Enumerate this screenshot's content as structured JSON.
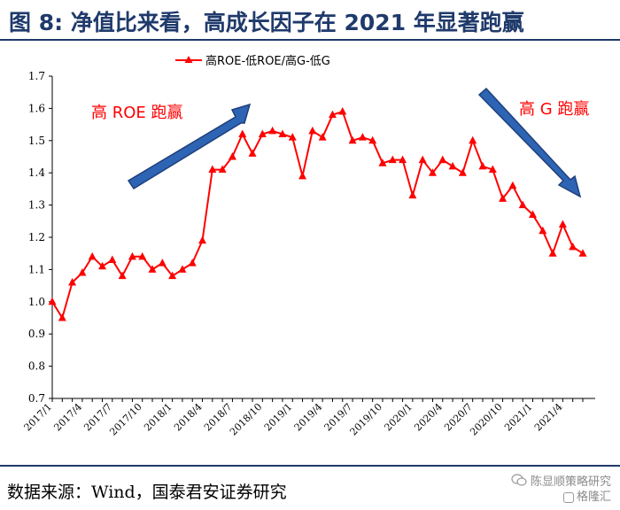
{
  "figure_title": "图 8:  净值比来看，高成长因子在 2021 年显著跑赢",
  "source_note": "数据来源：Wind，国泰君安证券研究",
  "watermark": {
    "line1": "陈显顺策略研究",
    "line2": "格隆汇"
  },
  "colors": {
    "series": "#ff0000",
    "arrow_fill": "#2e64b4",
    "arrow_stroke": "#1f3f7a",
    "title": "#1f3a6b",
    "annotation": "#ff0000"
  },
  "chart_data": {
    "type": "line",
    "title": "",
    "xlabel": "",
    "ylabel": "",
    "ylim": [
      0.7,
      1.7
    ],
    "yticks": [
      "0.7",
      "0.8",
      "0.9",
      "1.0",
      "1.1",
      "1.2",
      "1.3",
      "1.4",
      "1.5",
      "1.6",
      "1.7"
    ],
    "grid": false,
    "legend": "top-left",
    "x_tick_labels": [
      "2017/1",
      "2017/4",
      "2017/7",
      "2017/10",
      "2018/1",
      "2018/4",
      "2018/7",
      "2018/10",
      "2019/1",
      "2019/4",
      "2019/7",
      "2019/10",
      "2020/1",
      "2020/4",
      "2020/7",
      "2020/10",
      "2021/1",
      "2021/4"
    ],
    "x": [
      "2017/1",
      "2017/2",
      "2017/3",
      "2017/4",
      "2017/5",
      "2017/6",
      "2017/7",
      "2017/8",
      "2017/9",
      "2017/10",
      "2017/11",
      "2017/12",
      "2018/1",
      "2018/2",
      "2018/3",
      "2018/4",
      "2018/5",
      "2018/6",
      "2018/7",
      "2018/8",
      "2018/9",
      "2018/10",
      "2018/11",
      "2018/12",
      "2019/1",
      "2019/2",
      "2019/3",
      "2019/4",
      "2019/5",
      "2019/6",
      "2019/7",
      "2019/8",
      "2019/9",
      "2019/10",
      "2019/11",
      "2019/12",
      "2020/1",
      "2020/2",
      "2020/3",
      "2020/4",
      "2020/5",
      "2020/6",
      "2020/7",
      "2020/8",
      "2020/9",
      "2020/10",
      "2020/11",
      "2020/12",
      "2021/1",
      "2021/2",
      "2021/3",
      "2021/4",
      "2021/5",
      "2021/6"
    ],
    "series": [
      {
        "name": "高ROE-低ROE/高G-低G",
        "values": [
          1.0,
          0.95,
          1.06,
          1.09,
          1.14,
          1.11,
          1.13,
          1.08,
          1.14,
          1.14,
          1.1,
          1.12,
          1.08,
          1.1,
          1.12,
          1.19,
          1.41,
          1.41,
          1.45,
          1.52,
          1.46,
          1.52,
          1.53,
          1.52,
          1.51,
          1.39,
          1.53,
          1.51,
          1.58,
          1.59,
          1.5,
          1.51,
          1.5,
          1.43,
          1.44,
          1.44,
          1.33,
          1.44,
          1.4,
          1.44,
          1.42,
          1.4,
          1.5,
          1.42,
          1.41,
          1.32,
          1.36,
          1.3,
          1.27,
          1.22,
          1.15,
          1.24,
          1.17,
          1.15
        ]
      }
    ],
    "annotations": [
      "高 ROE 跑赢",
      "高 G 跑赢"
    ]
  }
}
